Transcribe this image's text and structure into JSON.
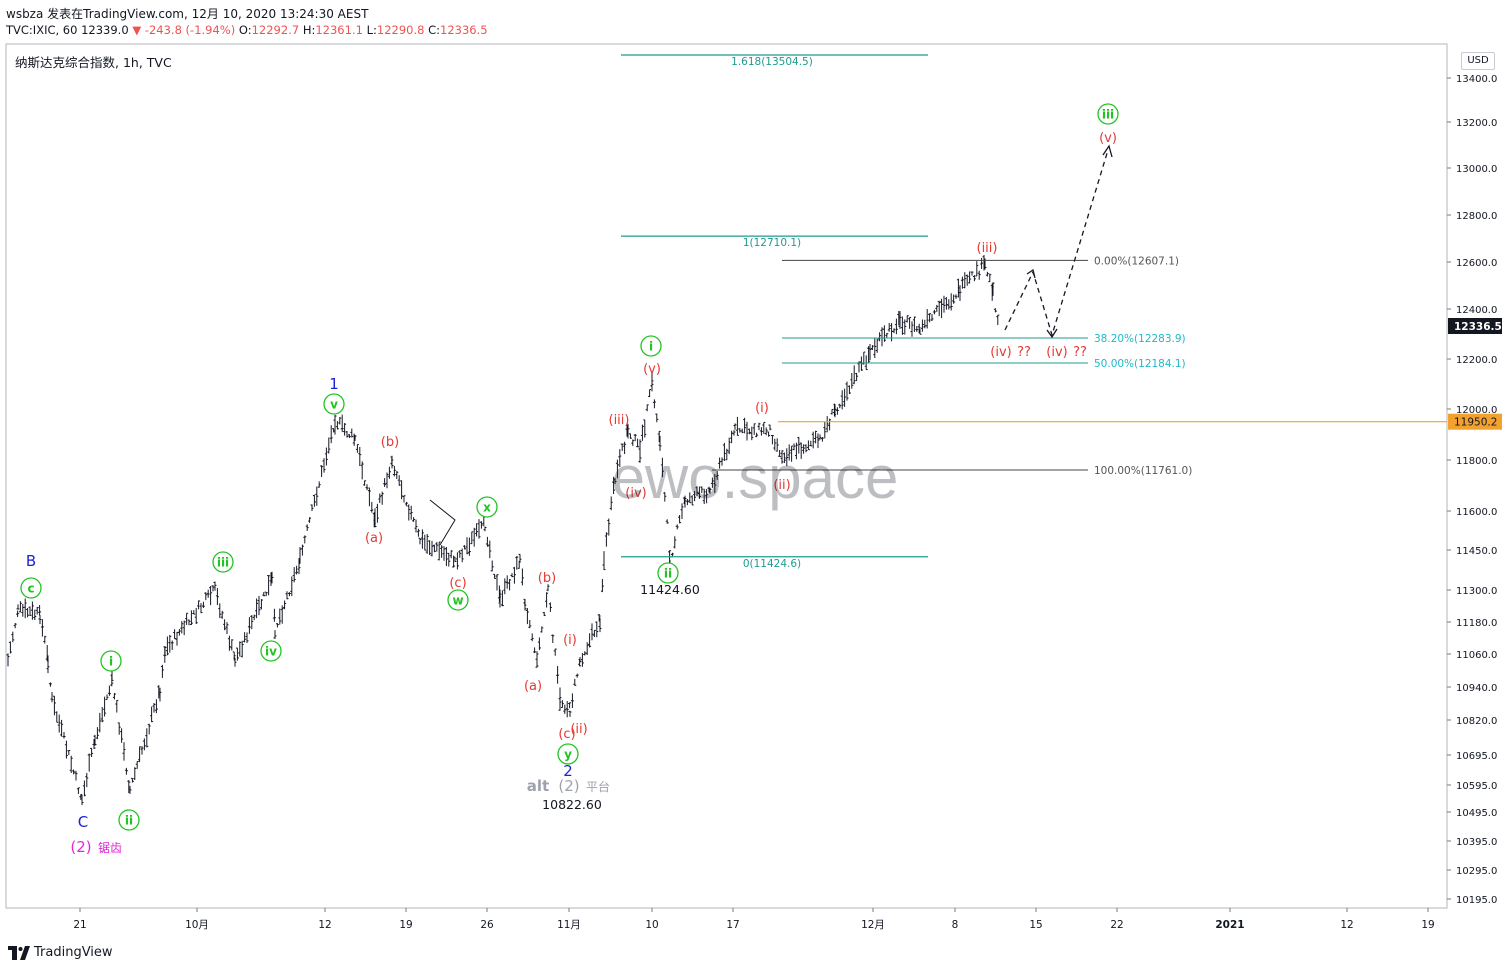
{
  "header": {
    "line1": "wsbza 发表在TradingView.com, 12月 10, 2020 13:24:30 AEST",
    "symbol": "TVC:IXIC, 60",
    "last": "12339.0",
    "change": "-243.8 (-1.94%)",
    "o_label": "O:",
    "o": "12292.7",
    "h_label": "H:",
    "h": "12361.1",
    "l_label": "L:",
    "l": "12290.8",
    "c_label": "C:",
    "c": "12336.5"
  },
  "chart_title": "纳斯达克综合指数, 1h, TVC",
  "currency": "USD",
  "watermark": "ewo.space",
  "footer": "TradingView",
  "colors": {
    "green": "#22c322",
    "red": "#e53935",
    "blue": "#1e22d6",
    "magenta": "#e02ad8",
    "teal": "#1f9b8e",
    "orange": "#f2a12e",
    "bar": "#131722"
  },
  "chart_data": {
    "type": "ohlc",
    "title": "纳斯达克综合指数, 1h, TVC",
    "y_axis_ticks": [
      "13400.0",
      "13200.0",
      "13000.0",
      "12800.0",
      "12600.0",
      "12400.0",
      "12200.0",
      "12000.0",
      "11800.0",
      "11600.0",
      "11450.0",
      "11300.0",
      "11180.0",
      "11060.0",
      "10940.0",
      "10820.0",
      "10695.0",
      "10595.0",
      "10495.0",
      "10395.0",
      "10295.0",
      "10195.0"
    ],
    "x_axis_ticks": [
      "21",
      "10月",
      "12",
      "19",
      "26",
      "11月",
      "10",
      "17",
      "12月",
      "8",
      "15",
      "22",
      "2021",
      "12",
      "19"
    ],
    "price_labels": {
      "last": "12336.5",
      "level": "11950.2"
    },
    "fib_levels_top": [
      {
        "label": "1.618(13504.5)",
        "value": 13504.5
      },
      {
        "label": "1(12710.1)",
        "value": 12710.1
      },
      {
        "label": "0(11424.6)",
        "value": 11424.6
      }
    ],
    "fib_levels_right": [
      {
        "label": "0.00%(12607.1)",
        "value": 12607.1
      },
      {
        "label": "38.20%(12283.9)",
        "value": 12283.9
      },
      {
        "label": "50.00%(12184.1)",
        "value": 12184.1
      },
      {
        "label": "100.00%(11761.0)",
        "value": 11761.0
      }
    ],
    "annotations": {
      "price_low1": "11424.60",
      "price_low2": "10822.60",
      "alt_label": "alt",
      "alt_wave": "(2)",
      "alt_note": "平台",
      "zigzag_wave": "(2)",
      "zigzag_note": "锯齿",
      "qq": "??"
    },
    "wave_labels": [
      {
        "text": "B",
        "color": "blue"
      },
      {
        "text": "c",
        "color": "green"
      },
      {
        "text": "C",
        "color": "blue"
      },
      {
        "text": "i",
        "color": "green"
      },
      {
        "text": "ii",
        "color": "green"
      },
      {
        "text": "iii",
        "color": "green"
      },
      {
        "text": "iv",
        "color": "green"
      },
      {
        "text": "v",
        "color": "green"
      },
      {
        "text": "1",
        "color": "blue"
      },
      {
        "text": "(a)",
        "color": "red"
      },
      {
        "text": "(b)",
        "color": "red"
      },
      {
        "text": "(c)",
        "color": "red"
      },
      {
        "text": "w",
        "color": "green"
      },
      {
        "text": "x",
        "color": "green"
      },
      {
        "text": "(a)",
        "color": "red"
      },
      {
        "text": "(b)",
        "color": "red"
      },
      {
        "text": "(c)",
        "color": "red"
      },
      {
        "text": "y",
        "color": "green"
      },
      {
        "text": "2",
        "color": "blue"
      },
      {
        "text": "(i)",
        "color": "red"
      },
      {
        "text": "(ii)",
        "color": "red"
      },
      {
        "text": "(iii)",
        "color": "red"
      },
      {
        "text": "(iv)",
        "color": "red"
      },
      {
        "text": "(v)",
        "color": "red"
      },
      {
        "text": "i",
        "color": "green"
      },
      {
        "text": "ii",
        "color": "green"
      },
      {
        "text": "(i)",
        "color": "red"
      },
      {
        "text": "(ii)",
        "color": "red"
      },
      {
        "text": "(iii)",
        "color": "red"
      },
      {
        "text": "(iv)",
        "color": "red"
      },
      {
        "text": "(iv)",
        "color": "red"
      },
      {
        "text": "(v)",
        "color": "red"
      },
      {
        "text": "iii",
        "color": "green"
      }
    ]
  }
}
